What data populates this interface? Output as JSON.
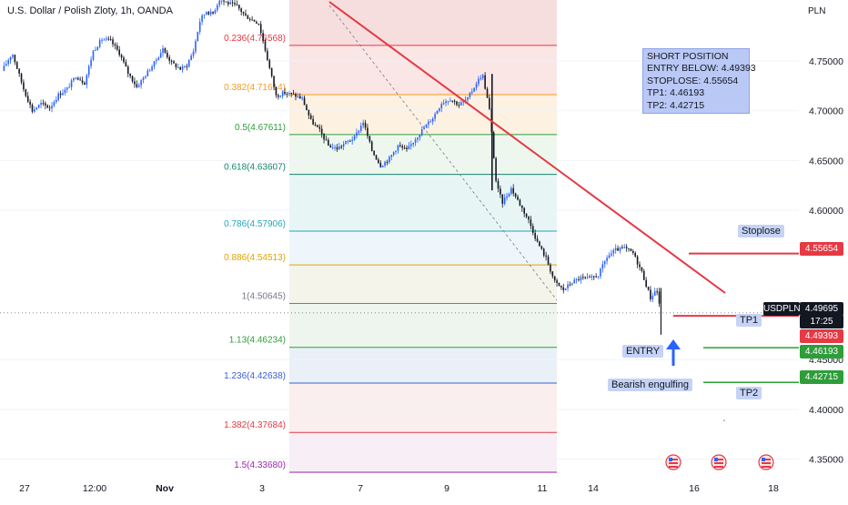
{
  "header": {
    "title": "U.S. Dollar / Polish Zloty, 1h, OANDA"
  },
  "price_axis": {
    "currency": "PLN"
  },
  "colors": {
    "up": "#2962ff",
    "down": "#131722",
    "trendline": "#e53944",
    "stoploss": "#e53944",
    "tp": "#2e9d3a"
  },
  "position_note": {
    "title": "SHORT POSITION",
    "entry": "ENTRY BELOW: 4.49393",
    "stoploss": "STOPLOSE: 4.55654",
    "tp1": "TP1: 4.46193",
    "tp2": "TP2: 4.42715"
  },
  "labels": {
    "stoploss": "Stoplose",
    "tp1": "TP1",
    "tp2": "TP2",
    "entry": "ENTRY",
    "pattern": "Bearish engulfing",
    "symbol": "USDPLN"
  },
  "badges": {
    "stoploss": "4.55654",
    "last_price": "4.49695",
    "countdown": "17:25",
    "entry": "4.49393",
    "tp1": "4.46193",
    "tp2": "4.42715"
  },
  "chart_data": {
    "type": "candlestick",
    "title": "U.S. Dollar / Polish Zloty, 1h, OANDA",
    "ylim": [
      4.318,
      4.808
    ],
    "y_ticks": [
      {
        "value": 4.75,
        "label": "4.75000"
      },
      {
        "value": 4.7,
        "label": "4.70000"
      },
      {
        "value": 4.65,
        "label": "4.65000"
      },
      {
        "value": 4.6,
        "label": "4.60000"
      },
      {
        "value": 4.45,
        "label": "4.45000"
      },
      {
        "value": 4.4,
        "label": "4.40000"
      },
      {
        "value": 4.35,
        "label": "4.35000"
      }
    ],
    "x_ticks": [
      "27",
      "12:00",
      "Nov",
      "3",
      "7",
      "9",
      "11",
      "14",
      "16",
      "18"
    ],
    "fibonacci_levels": [
      {
        "label": "0.236(4.76568)",
        "value": 4.76568,
        "color": "#e53944"
      },
      {
        "label": "0.382(4.71614)",
        "value": 4.71614,
        "color": "#f59b1c"
      },
      {
        "label": "0.5(4.67611)",
        "value": 4.67611,
        "color": "#2e9d3a"
      },
      {
        "label": "0.618(4.63607)",
        "value": 4.63607,
        "color": "#14866d"
      },
      {
        "label": "0.786(4.57906)",
        "value": 4.57906,
        "color": "#26a4b8"
      },
      {
        "label": "0.886(4.54513)",
        "value": 4.54513,
        "color": "#e0a300"
      },
      {
        "label": "1(4.50645)",
        "value": 4.50645,
        "color": "#787b86"
      },
      {
        "label": "1.13(4.46234)",
        "value": 4.46234,
        "color": "#2e9d3a"
      },
      {
        "label": "1.236(4.42638)",
        "value": 4.42638,
        "color": "#3b5fd0"
      },
      {
        "label": "1.382(4.37684)",
        "value": 4.37684,
        "color": "#e53944"
      },
      {
        "label": "1.5(4.33680)",
        "value": 4.3368,
        "color": "#9c27b0"
      }
    ],
    "position_levels": {
      "stoploss": 4.55654,
      "entry": 4.49393,
      "tp1": 4.46193,
      "tp2": 4.42715,
      "last": 4.49695
    },
    "price_path": [
      [
        0.0,
        4.74
      ],
      [
        1.2,
        4.758
      ],
      [
        2.5,
        4.722
      ],
      [
        3.5,
        4.7
      ],
      [
        4.5,
        4.707
      ],
      [
        5.5,
        4.703
      ],
      [
        6.5,
        4.716
      ],
      [
        7.5,
        4.722
      ],
      [
        8.5,
        4.735
      ],
      [
        9.5,
        4.728
      ],
      [
        10.5,
        4.76
      ],
      [
        11.5,
        4.772
      ],
      [
        12.5,
        4.77
      ],
      [
        13.5,
        4.758
      ],
      [
        14.5,
        4.738
      ],
      [
        15.5,
        4.724
      ],
      [
        16.5,
        4.736
      ],
      [
        17.5,
        4.748
      ],
      [
        18.5,
        4.762
      ],
      [
        19.5,
        4.748
      ],
      [
        20.5,
        4.742
      ],
      [
        21.2,
        4.745
      ],
      [
        22.0,
        4.76
      ],
      [
        22.8,
        4.792
      ],
      [
        23.5,
        4.8
      ],
      [
        24.2,
        4.797
      ],
      [
        25.0,
        4.812
      ],
      [
        26.0,
        4.808
      ],
      [
        27.0,
        4.805
      ],
      [
        28.0,
        4.795
      ],
      [
        29.5,
        4.788
      ],
      [
        30.5,
        4.752
      ],
      [
        31.5,
        4.715
      ],
      [
        32.5,
        4.718
      ],
      [
        33.5,
        4.716
      ],
      [
        34.5,
        4.712
      ],
      [
        35.5,
        4.69
      ],
      [
        36.5,
        4.68
      ],
      [
        37.5,
        4.665
      ],
      [
        38.5,
        4.662
      ],
      [
        39.5,
        4.668
      ],
      [
        40.5,
        4.673
      ],
      [
        41.5,
        4.689
      ],
      [
        42.5,
        4.66
      ],
      [
        43.5,
        4.645
      ],
      [
        44.5,
        4.652
      ],
      [
        45.5,
        4.665
      ],
      [
        46.5,
        4.66
      ],
      [
        47.5,
        4.672
      ],
      [
        48.5,
        4.683
      ],
      [
        49.5,
        4.693
      ],
      [
        50.5,
        4.708
      ],
      [
        51.5,
        4.712
      ],
      [
        52.5,
        4.706
      ],
      [
        53.5,
        4.712
      ],
      [
        54.5,
        4.728
      ],
      [
        55.2,
        4.737
      ],
      [
        56.0,
        4.701
      ],
      [
        56.8,
        4.625
      ],
      [
        57.5,
        4.608
      ],
      [
        58.5,
        4.622
      ],
      [
        59.5,
        4.606
      ],
      [
        60.5,
        4.59
      ],
      [
        61.5,
        4.568
      ],
      [
        62.5,
        4.552
      ],
      [
        63.5,
        4.528
      ],
      [
        64.5,
        4.52
      ],
      [
        65.5,
        4.528
      ],
      [
        66.5,
        4.532
      ],
      [
        67.5,
        4.531
      ],
      [
        68.5,
        4.535
      ],
      [
        69.5,
        4.553
      ],
      [
        70.5,
        4.56
      ],
      [
        71.5,
        4.562
      ],
      [
        72.5,
        4.557
      ],
      [
        73.5,
        4.538
      ],
      [
        74.5,
        4.512
      ],
      [
        75.2,
        4.521
      ],
      [
        75.7,
        4.497
      ]
    ]
  }
}
